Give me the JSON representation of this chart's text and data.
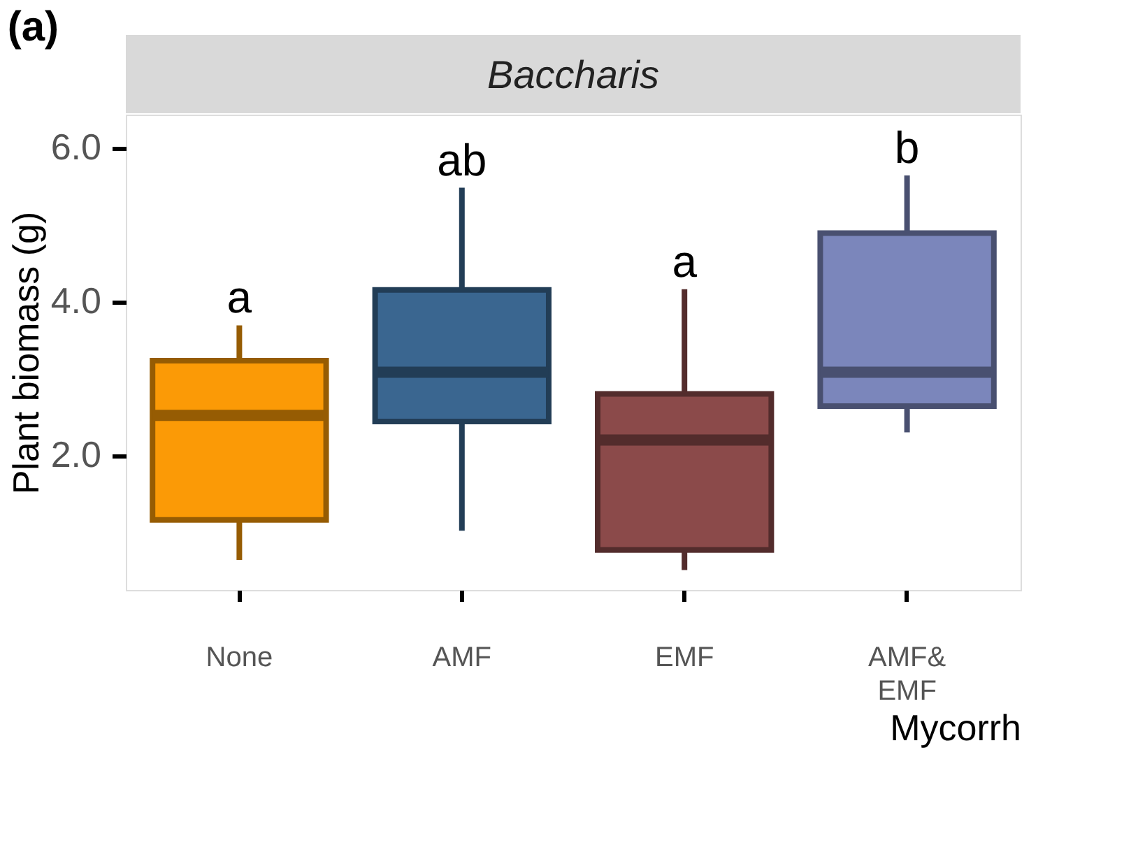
{
  "chart_data": {
    "type": "box",
    "title": "Baccharis",
    "xlabel": "Mycorrh",
    "ylabel": "Plant biomass (g)",
    "categories": [
      "None",
      "AMF",
      "EMF",
      "AMF&\nEMF"
    ],
    "colors": [
      "#fb9a06",
      "#3a6690",
      "#8b4a4a",
      "#7b86bb"
    ],
    "boxes": [
      {
        "low": 0.64,
        "q1": 1.16,
        "median": 2.52,
        "q3": 3.23,
        "high": 3.69
      },
      {
        "low": 1.02,
        "q1": 2.44,
        "median": 3.08,
        "q3": 4.15,
        "high": 5.48
      },
      {
        "low": 0.51,
        "q1": 0.77,
        "median": 2.2,
        "q3": 2.8,
        "high": 4.16
      },
      {
        "low": 2.3,
        "q1": 2.64,
        "median": 3.08,
        "q3": 4.89,
        "high": 5.64
      }
    ],
    "ylim": [
      0.25,
      6.43
    ],
    "yticks": [
      {
        "value": 2,
        "label": "2.0"
      },
      {
        "value": 4,
        "label": "4.0"
      },
      {
        "value": 6,
        "label": "6.0"
      }
    ],
    "grid": false,
    "annotations": [
      "(a)",
      "a",
      "ab",
      "a",
      "b"
    ]
  }
}
